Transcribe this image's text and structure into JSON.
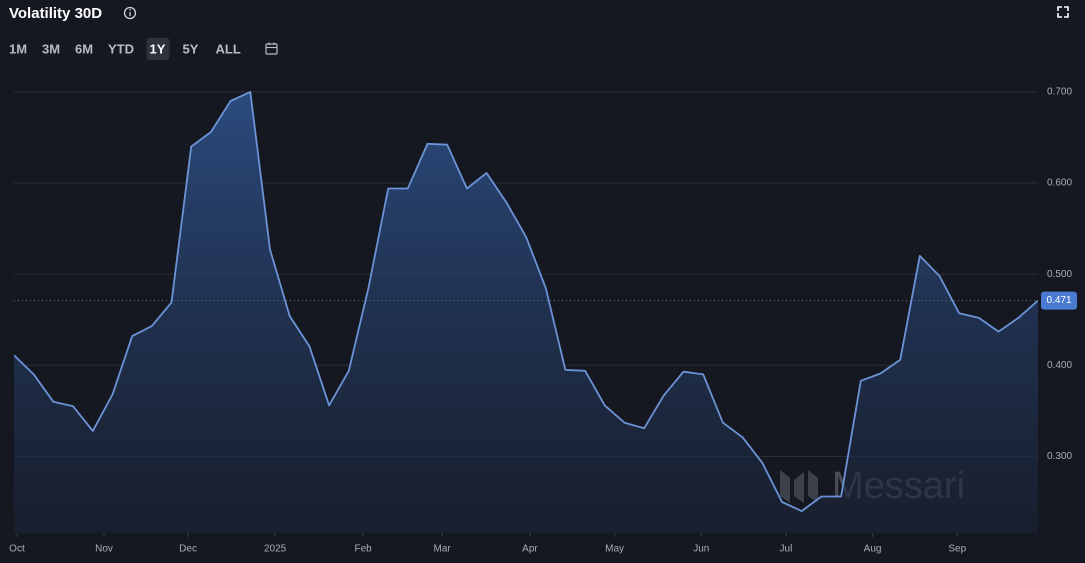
{
  "chart_data": {
    "type": "area",
    "title": "Volatility 30D",
    "ranges": [
      "1M",
      "3M",
      "6M",
      "YTD",
      "1Y",
      "5Y",
      "ALL"
    ],
    "selected_range": "1Y",
    "watermark": "Messari",
    "color": "#6b93d6",
    "values": [
      0.411,
      0.39,
      0.36,
      0.355,
      0.328,
      0.368,
      0.432,
      0.443,
      0.469,
      0.64,
      0.656,
      0.69,
      0.7,
      0.527,
      0.454,
      0.421,
      0.356,
      0.394,
      0.485,
      0.594,
      0.594,
      0.643,
      0.642,
      0.594,
      0.611,
      0.579,
      0.541,
      0.485,
      0.395,
      0.394,
      0.356,
      0.337,
      0.331,
      0.367,
      0.393,
      0.39,
      0.337,
      0.321,
      0.293,
      0.25,
      0.24,
      0.256,
      0.256,
      0.383,
      0.391,
      0.406,
      0.52,
      0.498,
      0.457,
      0.452,
      0.437,
      0.452,
      0.471
    ],
    "xlim": [
      0,
      52
    ],
    "xticks": [
      {
        "value": 0.15,
        "label": "Oct"
      },
      {
        "value": 4.57,
        "label": "Nov"
      },
      {
        "value": 8.84,
        "label": "Dec"
      },
      {
        "value": 13.26,
        "label": "2025"
      },
      {
        "value": 17.73,
        "label": "Feb"
      },
      {
        "value": 21.74,
        "label": "Mar"
      },
      {
        "value": 26.2,
        "label": "Apr"
      },
      {
        "value": 30.5,
        "label": "May"
      },
      {
        "value": 34.9,
        "label": "Jun"
      },
      {
        "value": 39.2,
        "label": "Jul"
      },
      {
        "value": 43.6,
        "label": "Aug"
      },
      {
        "value": 47.9,
        "label": "Sep"
      }
    ],
    "ylim": [
      0.216,
      0.724
    ],
    "yticks": [
      {
        "value": 0.3,
        "label": "0.300"
      },
      {
        "value": 0.4,
        "label": "0.400"
      },
      {
        "value": 0.5,
        "label": "0.500"
      },
      {
        "value": 0.6,
        "label": "0.600"
      },
      {
        "value": 0.7,
        "label": "0.700"
      }
    ],
    "grid": true
  }
}
